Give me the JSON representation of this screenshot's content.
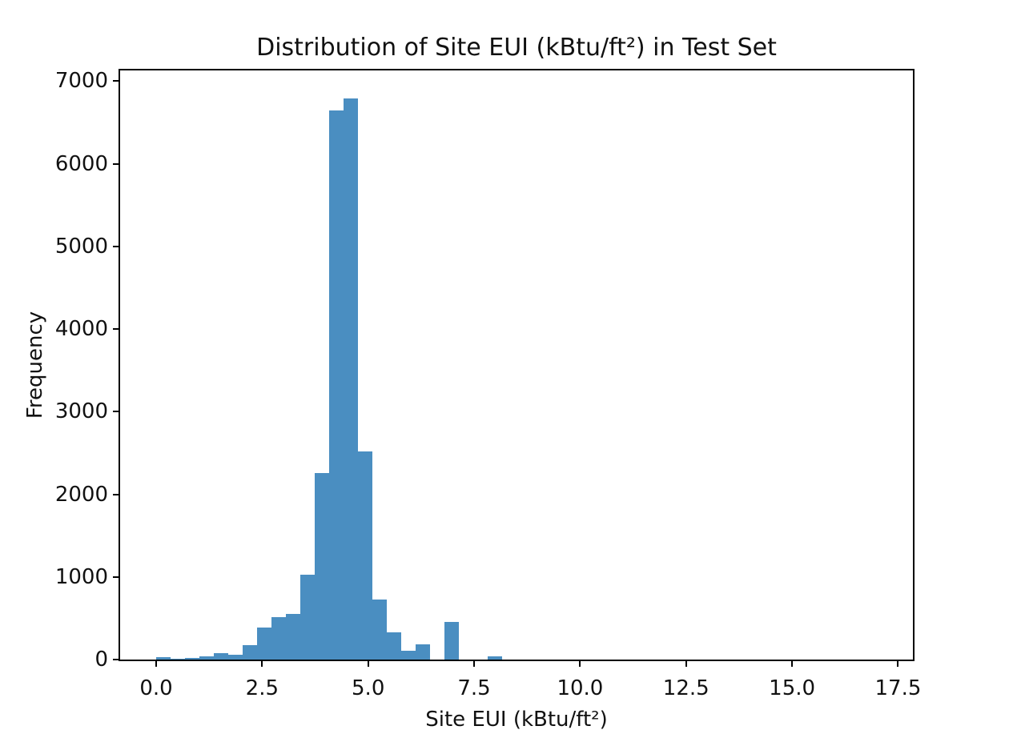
{
  "figure": {
    "background": "#ffffff"
  },
  "chart_data": {
    "type": "bar",
    "subtype": "histogram",
    "title": "Distribution of Site EUI (kBtu/ft²) in Test Set",
    "xlabel": "Site EUI (kBtu/ft²)",
    "ylabel": "Frequency",
    "bin_start": 0.0,
    "bin_width": 0.34,
    "n_bins": 24,
    "counts": [
      25,
      5,
      15,
      40,
      75,
      60,
      170,
      385,
      515,
      550,
      1030,
      2260,
      6650,
      6790,
      2520,
      730,
      330,
      105,
      185,
      0,
      460,
      0,
      0,
      42
    ],
    "xlim": [
      -0.85,
      17.85
    ],
    "ylim": [
      0,
      7130
    ],
    "x_ticks": {
      "values": [
        0.0,
        2.5,
        5.0,
        7.5,
        10.0,
        12.5,
        15.0,
        17.5
      ],
      "labels": [
        "0.0",
        "2.5",
        "5.0",
        "7.5",
        "10.0",
        "12.5",
        "15.0",
        "17.5"
      ]
    },
    "y_ticks": {
      "values": [
        0,
        1000,
        2000,
        3000,
        4000,
        5000,
        6000,
        7000
      ],
      "labels": [
        "0",
        "1000",
        "2000",
        "3000",
        "4000",
        "5000",
        "6000",
        "7000"
      ]
    },
    "bar_color": "#4A8EC1",
    "axis_color": "#000000",
    "grid": false,
    "legend": false
  }
}
